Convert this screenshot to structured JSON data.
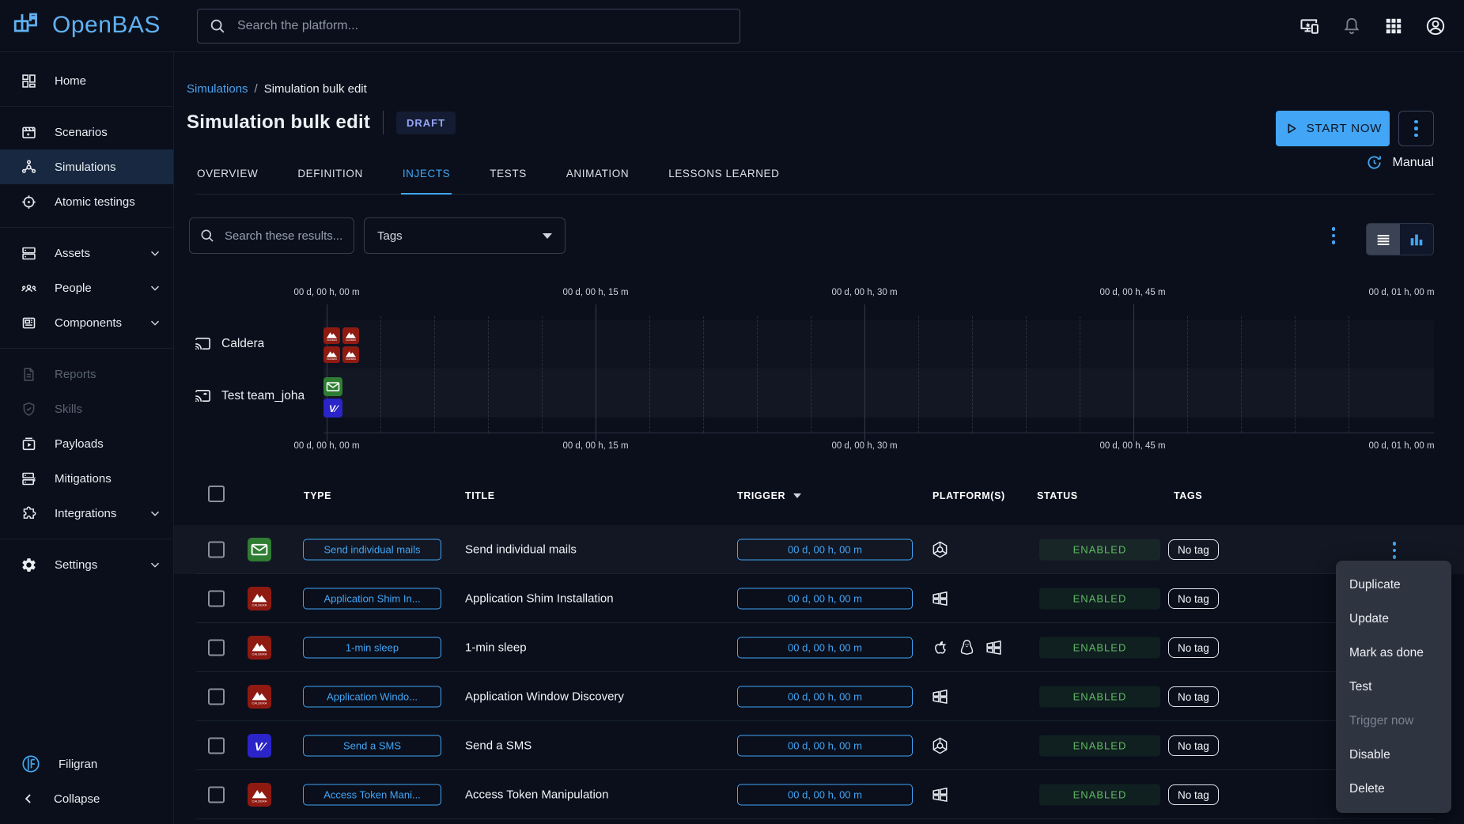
{
  "topbar": {
    "logo_text": "OpenBAS",
    "search_placeholder": "Search the platform..."
  },
  "sidebar": {
    "items": [
      {
        "label": "Home"
      },
      {
        "label": "Scenarios"
      },
      {
        "label": "Simulations"
      },
      {
        "label": "Atomic testings"
      },
      {
        "label": "Assets"
      },
      {
        "label": "People"
      },
      {
        "label": "Components"
      },
      {
        "label": "Reports"
      },
      {
        "label": "Skills"
      },
      {
        "label": "Payloads"
      },
      {
        "label": "Mitigations"
      },
      {
        "label": "Integrations"
      },
      {
        "label": "Settings"
      }
    ],
    "footer_brand": "Filigran",
    "collapse_label": "Collapse"
  },
  "header": {
    "breadcrumb_root": "Simulations",
    "breadcrumb_sep": "/",
    "breadcrumb_current": "Simulation bulk edit",
    "title": "Simulation bulk edit",
    "status_chip": "DRAFT",
    "start_button": "START NOW",
    "update_mode": "Manual"
  },
  "tabs": {
    "items": [
      "OVERVIEW",
      "DEFINITION",
      "INJECTS",
      "TESTS",
      "ANIMATION",
      "LESSONS LEARNED"
    ],
    "active": "INJECTS"
  },
  "filters": {
    "search_placeholder": "Search these results...",
    "tags_label": "Tags"
  },
  "timeline": {
    "ticks": [
      "00 d, 00 h, 00 m",
      "00 d, 00 h, 15 m",
      "00 d, 00 h, 30 m",
      "00 d, 00 h, 45 m",
      "00 d, 01 h, 00 m"
    ],
    "rows": [
      {
        "name": "Caldera",
        "injects_at_start": [
          {
            "type": "caldera",
            "count": 4
          }
        ]
      },
      {
        "name": "Test team_joha",
        "injects_at_start": [
          {
            "type": "email",
            "count": 1
          },
          {
            "type": "sms",
            "count": 1
          }
        ]
      }
    ]
  },
  "table": {
    "headers": {
      "type": "TYPE",
      "title": "TITLE",
      "trigger": "TRIGGER",
      "platforms": "PLATFORM(S)",
      "status": "STATUS",
      "tags": "TAGS"
    },
    "rows": [
      {
        "type_label": "Send individual mails",
        "type_icon": "email",
        "title": "Send individual mails",
        "trigger": "00 d, 00 h, 00 m",
        "platforms": [
          "internal"
        ],
        "status": "ENABLED",
        "tag": "No tag"
      },
      {
        "type_label": "Application Shim In...",
        "type_icon": "caldera",
        "title": "Application Shim Installation",
        "trigger": "00 d, 00 h, 00 m",
        "platforms": [
          "windows"
        ],
        "status": "ENABLED",
        "tag": "No tag"
      },
      {
        "type_label": "1-min sleep",
        "type_icon": "caldera",
        "title": "1-min sleep",
        "trigger": "00 d, 00 h, 00 m",
        "platforms": [
          "macos",
          "linux",
          "windows"
        ],
        "status": "ENABLED",
        "tag": "No tag"
      },
      {
        "type_label": "Application Windo...",
        "type_icon": "caldera",
        "title": "Application Window Discovery",
        "trigger": "00 d, 00 h, 00 m",
        "platforms": [
          "windows"
        ],
        "status": "ENABLED",
        "tag": "No tag"
      },
      {
        "type_label": "Send a SMS",
        "type_icon": "sms",
        "title": "Send a SMS",
        "trigger": "00 d, 00 h, 00 m",
        "platforms": [
          "internal"
        ],
        "status": "ENABLED",
        "tag": "No tag"
      },
      {
        "type_label": "Access Token Mani...",
        "type_icon": "caldera",
        "title": "Access Token Manipulation",
        "trigger": "00 d, 00 h, 00 m",
        "platforms": [
          "windows"
        ],
        "status": "ENABLED",
        "tag": "No tag"
      }
    ]
  },
  "context_menu": {
    "items": [
      {
        "label": "Duplicate",
        "disabled": false
      },
      {
        "label": "Update",
        "disabled": false
      },
      {
        "label": "Mark as done",
        "disabled": false
      },
      {
        "label": "Test",
        "disabled": false
      },
      {
        "label": "Trigger now",
        "disabled": true
      },
      {
        "label": "Disable",
        "disabled": false
      },
      {
        "label": "Delete",
        "disabled": false
      }
    ]
  },
  "colors": {
    "accent_blue": "#42a5f5",
    "logo_blue": "#61b1f1",
    "status_green": "#5fba63",
    "caldera_red": "#8f1a12",
    "email_green": "#2e7d32",
    "sms_indigo": "#2b24c8"
  }
}
